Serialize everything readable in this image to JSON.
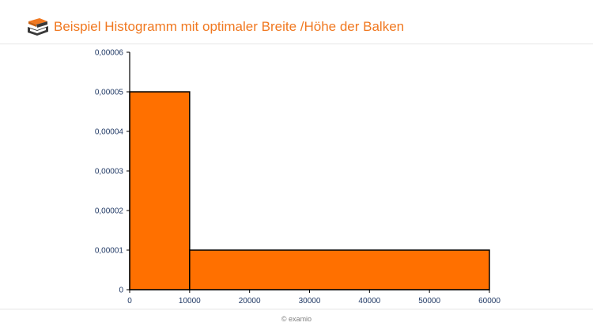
{
  "header": {
    "title": "Beispiel Histogramm mit optimaler Breite /Höhe der Balken",
    "logo_icon": "book-stack-icon"
  },
  "footer": {
    "text": "© examio"
  },
  "colors": {
    "accent": "#f07820",
    "bar_fill": "#ff7000",
    "bar_stroke": "#000000",
    "tick_label": "#1f3864",
    "axis": "#000000",
    "logo_dark": "#3a3a3a"
  },
  "chart_data": {
    "type": "bar",
    "subtype": "histogram",
    "title": "",
    "xlabel": "",
    "ylabel": "",
    "xlim": [
      0,
      60000
    ],
    "ylim": [
      0,
      6e-05
    ],
    "grid": false,
    "legend": "none",
    "bins": [
      {
        "from": 0,
        "to": 10000,
        "value": 5e-05
      },
      {
        "from": 10000,
        "to": 60000,
        "value": 1e-05
      }
    ],
    "x_ticks": [
      0,
      10000,
      20000,
      30000,
      40000,
      50000,
      60000
    ],
    "x_tick_labels": [
      "0",
      "10000",
      "20000",
      "30000",
      "40000",
      "50000",
      "60000"
    ],
    "y_ticks": [
      0,
      1e-05,
      2e-05,
      3e-05,
      4e-05,
      5e-05,
      6e-05
    ],
    "y_tick_labels": [
      "0",
      "0,00001",
      "0,00002",
      "0,00003",
      "0,00004",
      "0,00005",
      "0,00006"
    ]
  }
}
